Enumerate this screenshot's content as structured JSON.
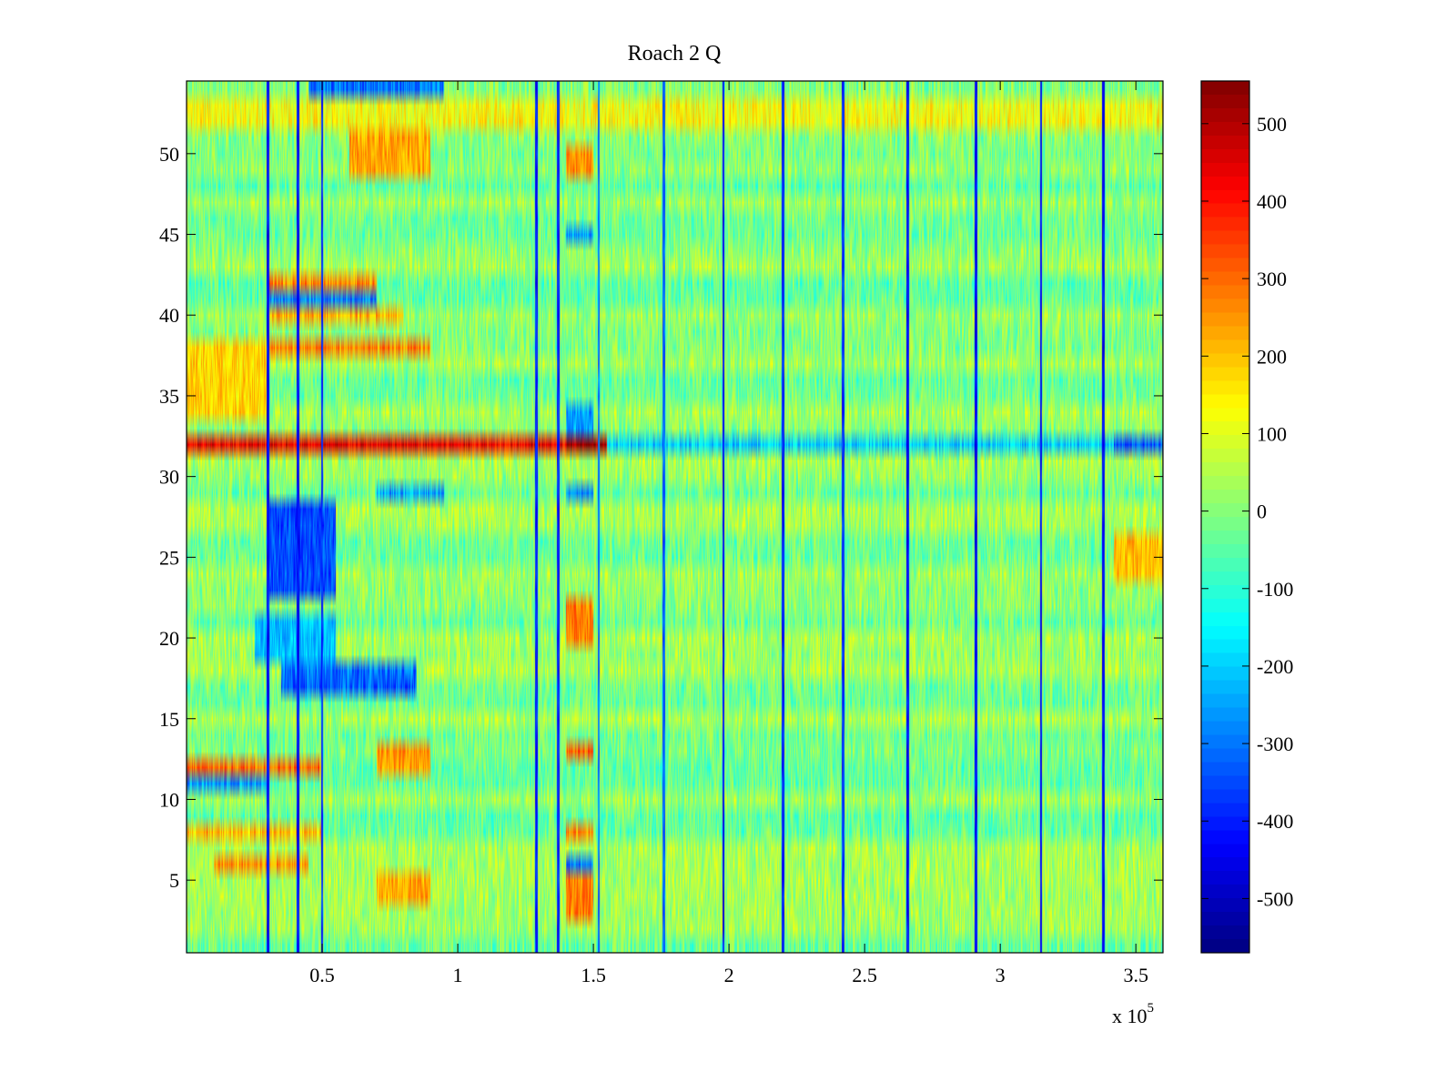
{
  "chart_data": {
    "type": "heatmap",
    "title": "Roach 2 Q",
    "xlabel": "",
    "ylabel": "",
    "x_multiplier_label": "x 10",
    "x_multiplier_exponent": "5",
    "xlim": [
      0,
      3.6
    ],
    "ylim": [
      0.5,
      54.5
    ],
    "xticks": [
      0.5,
      1,
      1.5,
      2,
      2.5,
      3,
      3.5
    ],
    "xtick_labels": [
      "0.5",
      "1",
      "1.5",
      "2",
      "2.5",
      "3",
      "3.5"
    ],
    "yticks": [
      5,
      10,
      15,
      20,
      25,
      30,
      35,
      40,
      45,
      50
    ],
    "ytick_labels": [
      "5",
      "10",
      "15",
      "20",
      "25",
      "30",
      "35",
      "40",
      "45",
      "50"
    ],
    "rows": 54,
    "colormap": "jet",
    "clim": [
      -570,
      555
    ],
    "colorbar_ticks": [
      500,
      400,
      300,
      200,
      100,
      0,
      -100,
      -200,
      -300,
      -400,
      -500
    ],
    "colorbar_tick_labels": [
      "500",
      "400",
      "300",
      "200",
      "100",
      "0",
      "-100",
      "-200",
      "-300",
      "-400",
      "-500"
    ],
    "baseline_value": 0,
    "noise_amplitude": 90,
    "vertical_stripes": [
      {
        "x": 0.3,
        "value": -420,
        "rows": [
          1,
          54
        ]
      },
      {
        "x": 0.41,
        "value": -420,
        "rows": [
          1,
          54
        ]
      },
      {
        "x": 0.5,
        "value": -380,
        "rows": [
          1,
          54
        ]
      },
      {
        "x": 1.29,
        "value": -400,
        "rows": [
          1,
          54
        ]
      },
      {
        "x": 1.37,
        "value": -400,
        "rows": [
          1,
          54
        ]
      },
      {
        "x": 1.52,
        "value": -300,
        "rows": [
          1,
          54
        ]
      },
      {
        "x": 1.76,
        "value": -320,
        "rows": [
          1,
          54
        ]
      },
      {
        "x": 1.98,
        "value": -430,
        "rows": [
          1,
          54
        ]
      },
      {
        "x": 2.2,
        "value": -400,
        "rows": [
          1,
          54
        ]
      },
      {
        "x": 2.42,
        "value": -380,
        "rows": [
          1,
          54
        ]
      },
      {
        "x": 2.66,
        "value": -420,
        "rows": [
          1,
          54
        ]
      },
      {
        "x": 2.91,
        "value": -420,
        "rows": [
          1,
          54
        ]
      },
      {
        "x": 3.15,
        "value": -420,
        "rows": [
          1,
          54
        ]
      },
      {
        "x": 3.38,
        "value": -420,
        "rows": [
          1,
          54
        ]
      }
    ],
    "row_bands": [
      {
        "row": 32,
        "x_range": [
          0,
          1.55
        ],
        "value": 430
      },
      {
        "row": 32,
        "x_range": [
          1.4,
          1.55
        ],
        "value": 520
      },
      {
        "row": 32,
        "x_range": [
          1.55,
          3.6
        ],
        "value": -200
      },
      {
        "row": 32,
        "x_range": [
          3.42,
          3.6
        ],
        "value": -330
      },
      {
        "row": 12,
        "x_range": [
          0,
          0.5
        ],
        "value": 300
      },
      {
        "row": 11,
        "x_range": [
          0,
          0.3
        ],
        "value": -250
      },
      {
        "row": 17,
        "x_range": [
          0.35,
          0.85
        ],
        "value": -330
      },
      {
        "row": 18,
        "x_range": [
          0.35,
          0.85
        ],
        "value": -300
      },
      {
        "row": 41,
        "x_range": [
          0.3,
          0.7
        ],
        "value": -280
      },
      {
        "row": 42,
        "x_range": [
          0.3,
          0.7
        ],
        "value": 260
      },
      {
        "row": 38,
        "x_range": [
          0.3,
          0.9
        ],
        "value": 260
      },
      {
        "row": 40,
        "x_range": [
          0.3,
          0.8
        ],
        "value": 220
      },
      {
        "row": 6,
        "x_range": [
          0.1,
          0.45
        ],
        "value": 250
      },
      {
        "row": 8,
        "x_range": [
          0,
          0.5
        ],
        "value": 200
      },
      {
        "row": 29,
        "x_range": [
          0.7,
          0.95
        ],
        "value": -250
      },
      {
        "row": 54,
        "x_range": [
          0.45,
          0.95
        ],
        "value": -300
      },
      {
        "row": 53,
        "x_range": [
          0.45,
          0.95
        ],
        "value": -250
      },
      {
        "row": 52,
        "x_range": [
          0,
          3.6
        ],
        "value": 130
      },
      {
        "row": 53,
        "x_range": [
          0,
          3.6
        ],
        "value": 120
      }
    ],
    "blocks": [
      {
        "x_range": [
          0.3,
          0.55
        ],
        "rows": [
          23,
          28
        ],
        "value": -350
      },
      {
        "x_range": [
          0.25,
          0.55
        ],
        "rows": [
          19,
          21
        ],
        "value": -220
      },
      {
        "x_range": [
          1.4,
          1.5
        ],
        "rows": [
          3,
          5
        ],
        "value": 270
      },
      {
        "x_range": [
          1.4,
          1.5
        ],
        "rows": [
          20,
          22
        ],
        "value": 280
      },
      {
        "x_range": [
          1.4,
          1.5
        ],
        "rows": [
          13,
          13
        ],
        "value": 300
      },
      {
        "x_range": [
          1.4,
          1.5
        ],
        "rows": [
          8,
          8
        ],
        "value": 260
      },
      {
        "x_range": [
          1.4,
          1.5
        ],
        "rows": [
          6,
          6
        ],
        "value": -300
      },
      {
        "x_range": [
          1.4,
          1.5
        ],
        "rows": [
          29,
          29
        ],
        "value": -280
      },
      {
        "x_range": [
          1.4,
          1.5
        ],
        "rows": [
          33,
          34
        ],
        "value": -250
      },
      {
        "x_range": [
          1.4,
          1.5
        ],
        "rows": [
          45,
          45
        ],
        "value": -260
      },
      {
        "x_range": [
          1.4,
          1.5
        ],
        "rows": [
          49,
          50
        ],
        "value": 250
      },
      {
        "x_range": [
          0.6,
          0.9
        ],
        "rows": [
          49,
          51
        ],
        "value": 230
      },
      {
        "x_range": [
          0.7,
          0.9
        ],
        "rows": [
          12,
          13
        ],
        "value": 240
      },
      {
        "x_range": [
          0.7,
          0.9
        ],
        "rows": [
          4,
          5
        ],
        "value": 220
      },
      {
        "x_range": [
          0,
          0.3
        ],
        "rows": [
          34,
          38
        ],
        "value": 180
      },
      {
        "x_range": [
          3.42,
          3.6
        ],
        "rows": [
          24,
          26
        ],
        "value": 200
      }
    ],
    "grid": false,
    "colorbar": "right"
  }
}
